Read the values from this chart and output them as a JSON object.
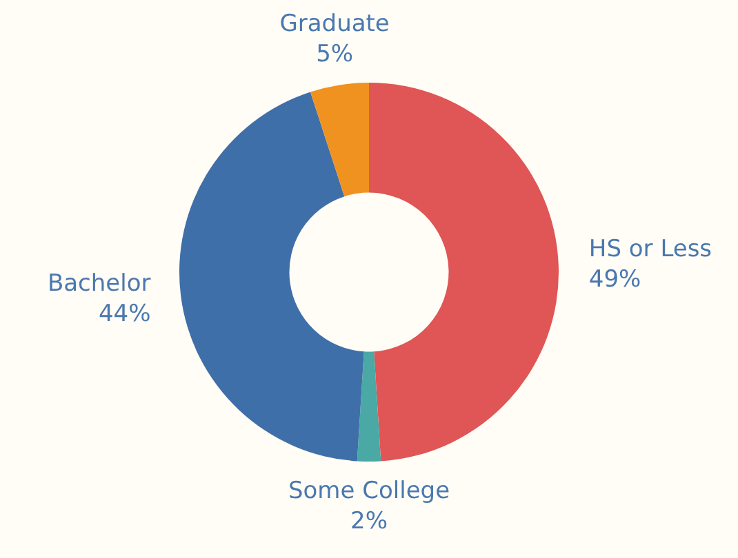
{
  "chart_data": {
    "type": "donut",
    "categories": [
      "HS or Less",
      "Some College",
      "Bachelor",
      "Graduate"
    ],
    "values": [
      49,
      2,
      44,
      5
    ],
    "value_labels": [
      "49%",
      "2%",
      "44%",
      "5%"
    ],
    "colors": [
      "#e05555",
      "#4aa9a4",
      "#3f6fa9",
      "#f0921f"
    ],
    "legend": false
  }
}
